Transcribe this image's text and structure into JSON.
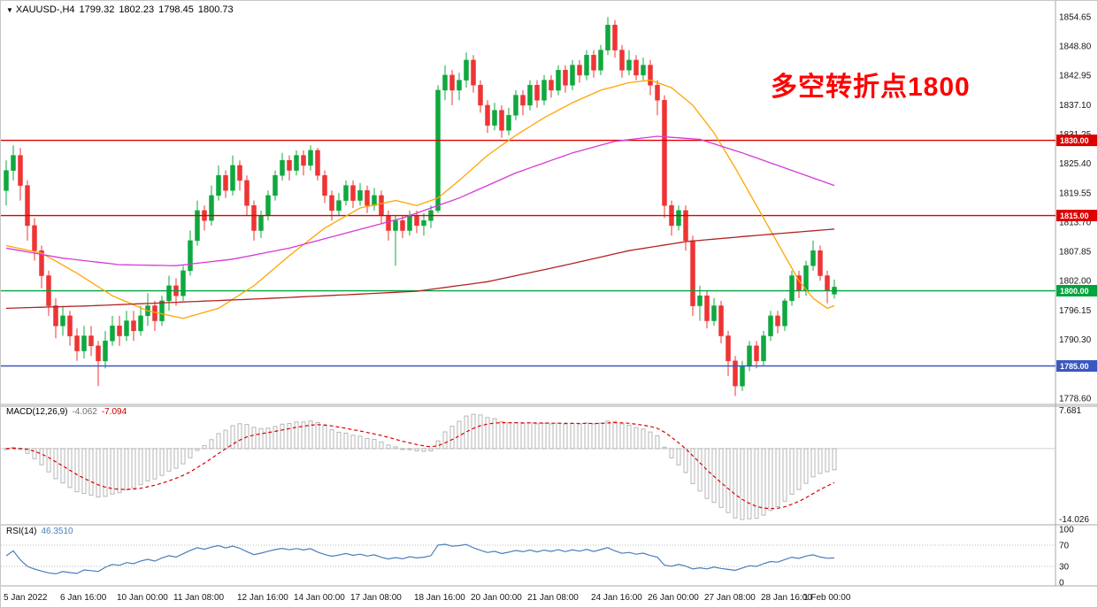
{
  "quote_bar": {
    "symbol_period": "XAUUSD-,H4",
    "open": "1799.32",
    "high": "1802.23",
    "low": "1798.45",
    "close": "1800.73"
  },
  "annotation": {
    "text": "多空转折点1800",
    "color": "#ff0000"
  },
  "indicators": {
    "macd": {
      "label": "MACD(12,26,9)",
      "value_main": "-4.062",
      "value_signal": "-7.094"
    },
    "rsi": {
      "label": "RSI(14)",
      "value": "46.3510"
    }
  },
  "time_axis": {
    "labels": [
      [
        "5 Jan 2022",
        0
      ],
      [
        "6 Jan 16:00",
        8
      ],
      [
        "10 Jan 00:00",
        16
      ],
      [
        "11 Jan 08:00",
        24
      ],
      [
        "12 Jan 16:00",
        33
      ],
      [
        "14 Jan 00:00",
        41
      ],
      [
        "17 Jan 08:00",
        49
      ],
      [
        "18 Jan 16:00",
        58
      ],
      [
        "20 Jan 00:00",
        66
      ],
      [
        "21 Jan 08:00",
        74
      ],
      [
        "24 Jan 16:00",
        83
      ],
      [
        "26 Jan 00:00",
        91
      ],
      [
        "27 Jan 08:00",
        99
      ],
      [
        "28 Jan 16:00",
        107
      ],
      [
        "1 Feb 00:00",
        113
      ]
    ]
  },
  "chart_data": [
    {
      "type": "candlestick",
      "title": "XAUUSD- H4",
      "ylim": [
        1777.5,
        1856.4
      ],
      "y_ticks": [
        "1854.65",
        "1848.80",
        "1842.95",
        "1837.10",
        "1831.25",
        "1825.40",
        "1819.55",
        "1813.70",
        "1807.85",
        "1802.00",
        "1796.15",
        "1790.30",
        "1784.45",
        "1778.60"
      ],
      "colors": {
        "up": "#0fa83f",
        "down": "#ee3434"
      },
      "hlines": [
        {
          "price": 1830.0,
          "label": "1830.00",
          "color": "#dd0000"
        },
        {
          "price": 1815.0,
          "label": "1815.00",
          "color": "#dd0000"
        },
        {
          "price": 1800.0,
          "label": "1800.00",
          "color": "#00a43c"
        },
        {
          "price": 1785.0,
          "label": "1785.00",
          "color": "#3a57c0"
        }
      ],
      "ohlc": [
        [
          1820,
          1826,
          1817,
          1824
        ],
        [
          1824,
          1829,
          1822,
          1827
        ],
        [
          1827,
          1828.5,
          1818,
          1821
        ],
        [
          1821,
          1822,
          1810,
          1813
        ],
        [
          1813,
          1814.5,
          1806,
          1808
        ],
        [
          1808,
          1809,
          1800.5,
          1803
        ],
        [
          1803,
          1804,
          1795,
          1797
        ],
        [
          1797,
          1798.5,
          1790.5,
          1793
        ],
        [
          1793,
          1797,
          1791,
          1795
        ],
        [
          1795,
          1796,
          1789,
          1791
        ],
        [
          1791,
          1792.5,
          1786,
          1788
        ],
        [
          1788,
          1793,
          1786.5,
          1791
        ],
        [
          1791,
          1793,
          1787,
          1789
        ],
        [
          1789,
          1790,
          1781,
          1786
        ],
        [
          1786,
          1792,
          1784.5,
          1790
        ],
        [
          1790,
          1795,
          1789,
          1793
        ],
        [
          1793,
          1795,
          1789,
          1791
        ],
        [
          1791,
          1796,
          1790,
          1794
        ],
        [
          1794,
          1796,
          1790,
          1792
        ],
        [
          1792,
          1797,
          1791,
          1795
        ],
        [
          1795,
          1799.5,
          1793,
          1797
        ],
        [
          1797,
          1798,
          1792,
          1794
        ],
        [
          1794,
          1799,
          1793,
          1798
        ],
        [
          1798,
          1803,
          1796,
          1801
        ],
        [
          1801,
          1802.5,
          1797,
          1799
        ],
        [
          1799,
          1805,
          1798,
          1804
        ],
        [
          1804,
          1812,
          1803,
          1810
        ],
        [
          1810,
          1818,
          1809,
          1816
        ],
        [
          1816,
          1817,
          1812,
          1814
        ],
        [
          1814,
          1821,
          1813,
          1819
        ],
        [
          1819,
          1825,
          1818,
          1823
        ],
        [
          1823,
          1824,
          1818.5,
          1820
        ],
        [
          1820,
          1827,
          1819,
          1825
        ],
        [
          1825,
          1826,
          1820,
          1822
        ],
        [
          1822,
          1823,
          1815,
          1817
        ],
        [
          1817,
          1818,
          1810,
          1812
        ],
        [
          1812,
          1816,
          1810.5,
          1815
        ],
        [
          1815,
          1820,
          1814,
          1819
        ],
        [
          1819,
          1824,
          1818,
          1823
        ],
        [
          1823,
          1827.5,
          1822,
          1826
        ],
        [
          1826,
          1827,
          1822,
          1824
        ],
        [
          1824,
          1828,
          1823,
          1827
        ],
        [
          1827,
          1828,
          1823,
          1825
        ],
        [
          1825,
          1829,
          1824,
          1828
        ],
        [
          1828,
          1828.5,
          1822,
          1823
        ],
        [
          1823,
          1824,
          1817.5,
          1819
        ],
        [
          1819,
          1820,
          1814,
          1816
        ],
        [
          1816,
          1819.5,
          1815,
          1818
        ],
        [
          1818,
          1822,
          1817,
          1821
        ],
        [
          1821,
          1822,
          1816.5,
          1818
        ],
        [
          1818,
          1821.5,
          1817,
          1820
        ],
        [
          1820,
          1821,
          1815.5,
          1817
        ],
        [
          1817,
          1820.5,
          1816,
          1819
        ],
        [
          1819,
          1820,
          1813.5,
          1815
        ],
        [
          1815,
          1816,
          1810,
          1812
        ],
        [
          1812,
          1815,
          1805,
          1814
        ],
        [
          1814,
          1815,
          1810.5,
          1812
        ],
        [
          1812,
          1816,
          1811,
          1815
        ],
        [
          1815,
          1816,
          1811.5,
          1813
        ],
        [
          1813,
          1815.5,
          1811,
          1814
        ],
        [
          1814,
          1817,
          1812.5,
          1816
        ],
        [
          1816,
          1841,
          1815.5,
          1840
        ],
        [
          1840,
          1845,
          1838,
          1843
        ],
        [
          1843,
          1844,
          1837,
          1840
        ],
        [
          1840,
          1843.5,
          1838,
          1842
        ],
        [
          1842,
          1847.5,
          1840.5,
          1846
        ],
        [
          1846,
          1847,
          1839.5,
          1841
        ],
        [
          1841,
          1842,
          1835.5,
          1837
        ],
        [
          1837,
          1838,
          1831.5,
          1833
        ],
        [
          1833,
          1837.5,
          1832,
          1836
        ],
        [
          1836,
          1837,
          1830.5,
          1832
        ],
        [
          1832,
          1836.5,
          1831,
          1835
        ],
        [
          1835,
          1840,
          1834,
          1839
        ],
        [
          1839,
          1840,
          1835,
          1837
        ],
        [
          1837,
          1842,
          1836,
          1841
        ],
        [
          1841,
          1842,
          1836.5,
          1838
        ],
        [
          1838,
          1843,
          1837,
          1842
        ],
        [
          1842,
          1843,
          1838.5,
          1840
        ],
        [
          1840,
          1845,
          1839,
          1844
        ],
        [
          1844,
          1845,
          1839.5,
          1841
        ],
        [
          1841,
          1846,
          1840,
          1845
        ],
        [
          1845,
          1846,
          1841.5,
          1843
        ],
        [
          1843,
          1848,
          1842,
          1847
        ],
        [
          1847,
          1848,
          1842.5,
          1844
        ],
        [
          1844,
          1849,
          1843,
          1848
        ],
        [
          1848,
          1854.6,
          1847,
          1853
        ],
        [
          1853,
          1854,
          1846.5,
          1848
        ],
        [
          1848,
          1849,
          1842.5,
          1844
        ],
        [
          1844,
          1848,
          1843,
          1846
        ],
        [
          1846,
          1847,
          1842,
          1843
        ],
        [
          1843,
          1846.5,
          1842,
          1845
        ],
        [
          1845,
          1846,
          1839,
          1841
        ],
        [
          1841,
          1842,
          1835,
          1838
        ],
        [
          1838,
          1839,
          1814.5,
          1817
        ],
        [
          1817,
          1818,
          1811,
          1813
        ],
        [
          1813,
          1817,
          1812,
          1816
        ],
        [
          1816,
          1817,
          1808,
          1810
        ],
        [
          1810,
          1811,
          1795,
          1797
        ],
        [
          1797,
          1801,
          1794,
          1799
        ],
        [
          1799,
          1800,
          1792.5,
          1794
        ],
        [
          1794,
          1798.5,
          1793,
          1797
        ],
        [
          1797,
          1798,
          1789.5,
          1791
        ],
        [
          1791,
          1792,
          1783,
          1786
        ],
        [
          1786,
          1787,
          1779,
          1781
        ],
        [
          1781,
          1786,
          1780,
          1785
        ],
        [
          1785,
          1790,
          1784,
          1789
        ],
        [
          1789,
          1790,
          1784.5,
          1786
        ],
        [
          1786,
          1792,
          1785,
          1791
        ],
        [
          1791,
          1796,
          1790,
          1795
        ],
        [
          1795,
          1796,
          1791.5,
          1793
        ],
        [
          1793,
          1798.5,
          1792,
          1798
        ],
        [
          1798,
          1804,
          1797,
          1803
        ],
        [
          1803,
          1804,
          1798.5,
          1800
        ],
        [
          1800,
          1806,
          1799,
          1805
        ],
        [
          1805,
          1810,
          1804,
          1808
        ],
        [
          1808,
          1809,
          1802,
          1803
        ],
        [
          1803,
          1804,
          1797.5,
          1800
        ],
        [
          1799.32,
          1802.23,
          1798.45,
          1800.73
        ]
      ],
      "moving_averages": [
        {
          "name": "ma-fast-line",
          "color": "#ffa500",
          "points": [
            [
              0,
              1809
            ],
            [
              5,
              1807.5
            ],
            [
              10,
              1803.5
            ],
            [
              15,
              1799
            ],
            [
              20,
              1796
            ],
            [
              25,
              1794.5
            ],
            [
              30,
              1796.5
            ],
            [
              35,
              1801
            ],
            [
              40,
              1807
            ],
            [
              45,
              1812.5
            ],
            [
              50,
              1816.5
            ],
            [
              55,
              1818
            ],
            [
              58,
              1817
            ],
            [
              61,
              1818.5
            ],
            [
              64,
              1822
            ],
            [
              68,
              1827
            ],
            [
              72,
              1831
            ],
            [
              76,
              1834.5
            ],
            [
              80,
              1837.5
            ],
            [
              84,
              1840
            ],
            [
              88,
              1841.5
            ],
            [
              91,
              1842
            ],
            [
              94,
              1840.5
            ],
            [
              97,
              1837
            ],
            [
              100,
              1831.5
            ],
            [
              103,
              1824.5
            ],
            [
              106,
              1817
            ],
            [
              109,
              1809.5
            ],
            [
              112,
              1802
            ],
            [
              114,
              1798.5
            ],
            [
              116,
              1796.5
            ],
            [
              117,
              1797
            ]
          ]
        },
        {
          "name": "ma-mid-line",
          "color": "#d63ad6",
          "points": [
            [
              0,
              1808.5
            ],
            [
              8,
              1806.5
            ],
            [
              16,
              1805.2
            ],
            [
              24,
              1805
            ],
            [
              32,
              1806.3
            ],
            [
              40,
              1808.5
            ],
            [
              48,
              1811.5
            ],
            [
              56,
              1814.5
            ],
            [
              64,
              1818.5
            ],
            [
              72,
              1823.5
            ],
            [
              80,
              1827.5
            ],
            [
              86,
              1829.8
            ],
            [
              92,
              1830.8
            ],
            [
              98,
              1830.2
            ],
            [
              104,
              1827.5
            ],
            [
              110,
              1824.5
            ],
            [
              114,
              1822.5
            ],
            [
              117,
              1821
            ]
          ]
        },
        {
          "name": "ma-slow-line",
          "color": "#b22222",
          "points": [
            [
              0,
              1796.5
            ],
            [
              12,
              1797
            ],
            [
              24,
              1797.7
            ],
            [
              36,
              1798.4
            ],
            [
              48,
              1799.2
            ],
            [
              58,
              1799.9
            ],
            [
              68,
              1801.8
            ],
            [
              78,
              1804.8
            ],
            [
              88,
              1808
            ],
            [
              96,
              1809.8
            ],
            [
              104,
              1810.8
            ],
            [
              110,
              1811.5
            ],
            [
              117,
              1812.3
            ]
          ]
        }
      ]
    },
    {
      "type": "bar",
      "name": "MACD",
      "label": "MACD(12,26,9)",
      "params": [
        12,
        26,
        9
      ],
      "axis_max": "7.681",
      "axis_min": "-14.026",
      "histogram_color": "#b6b6b6",
      "signal_color": "#dd0000"
    },
    {
      "type": "line",
      "name": "RSI",
      "label": "RSI(14)",
      "period": 14,
      "levels": [
        70,
        30
      ],
      "axis_ticks": [
        "100",
        "70",
        "30",
        "0"
      ],
      "color": "#4a7ebb"
    }
  ]
}
